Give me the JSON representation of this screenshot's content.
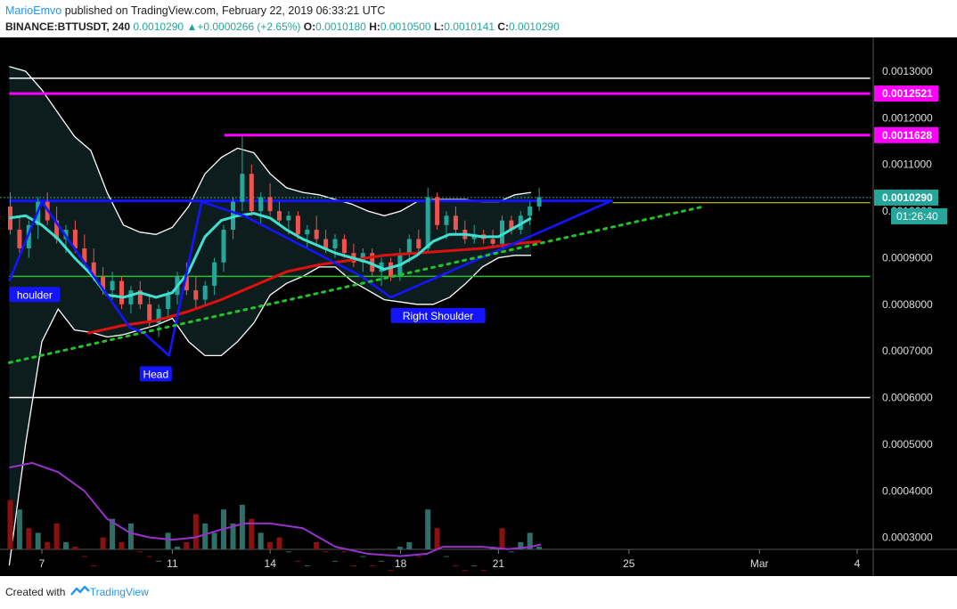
{
  "header": {
    "author": "MarioEmvo",
    "published": "published on TradingView.com, February 22, 2019 06:33:21 UTC",
    "symbol": "BINANCE:BTTUSDT, 240",
    "price": "0.0010290",
    "change": "+0.0000266 (+2.65%)",
    "o_label": "O:",
    "o": "0.0010180",
    "h_label": "H:",
    "h": "0.0010500",
    "l_label": "L:",
    "l": "0.0010141",
    "c_label": "C:",
    "c": "0.0010290"
  },
  "footer": {
    "created_with": "Created with",
    "brand": "TradingView"
  },
  "colors": {
    "background": "#000000",
    "up": "#26a69a",
    "down": "#ef5350",
    "vol_up": "#2f6f68",
    "vol_down": "#8b1010",
    "magenta": "#ff00ff",
    "blue": "#1414ff",
    "cyan": "#40e0d0",
    "red": "#e01010",
    "green": "#22c22a",
    "purple": "#9932cc",
    "white": "#ffffff",
    "yellow": "#e8e800"
  },
  "chart_data": {
    "type": "candlestick",
    "timeframe": "240",
    "y_ticks": [
      "0.0013000",
      "0.0012000",
      "0.0011000",
      "0.0010000",
      "0.0009000",
      "0.0008000",
      "0.0007000",
      "0.0006000",
      "0.0005000",
      "0.0004000",
      "0.0003000"
    ],
    "x_ticks": [
      {
        "label": "7",
        "day": 7
      },
      {
        "label": "11",
        "day": 11
      },
      {
        "label": "14",
        "day": 14
      },
      {
        "label": "18",
        "day": 18
      },
      {
        "label": "21",
        "day": 21
      },
      {
        "label": "25",
        "day": 25
      },
      {
        "label": "Mar",
        "day": 29
      },
      {
        "label": "4",
        "day": 32
      }
    ],
    "x_range": [
      6,
      32.4
    ],
    "price_badges": [
      {
        "label": "0.0012521",
        "value": 0.0012521,
        "color": "#ff00ff"
      },
      {
        "label": "0.0011628",
        "value": 0.0011628,
        "color": "#ff00ff"
      },
      {
        "label": "0.0010290",
        "value": 0.001029,
        "color": "#26a69a"
      }
    ],
    "countdown": "01:26:40",
    "annotations": [
      {
        "label": "houlder",
        "day": 6.0,
        "price": 0.00082
      },
      {
        "label": "Head",
        "day": 10.0,
        "price": 0.00065
      },
      {
        "label": "Right Shoulder",
        "day": 17.7,
        "price": 0.000775
      }
    ],
    "horizontal_lines": [
      {
        "price": 0.001285,
        "color": "white",
        "from": 6,
        "to": 32.4
      },
      {
        "price": 0.0012521,
        "color": "magenta",
        "from": 6,
        "to": 32.4,
        "width": 3
      },
      {
        "price": 0.0011628,
        "color": "magenta",
        "from": 12.6,
        "to": 32.4,
        "width": 3
      },
      {
        "price": 0.001022,
        "color": "blue",
        "from": 6,
        "to": 24.5,
        "width": 3
      },
      {
        "price": 0.001018,
        "color": "yellow",
        "from": 24.5,
        "to": 32.4,
        "width": 1
      },
      {
        "price": 0.00086,
        "color": "green",
        "from": 6,
        "to": 32.4,
        "width": 1.5
      },
      {
        "price": 0.0006,
        "color": "white",
        "from": 6,
        "to": 32.4,
        "width": 1.5
      }
    ],
    "pattern_lines": [
      {
        "color": "blue",
        "points": [
          [
            6,
            0.00085
          ],
          [
            7,
            0.00102
          ],
          [
            9.7,
            0.00075
          ],
          [
            10.1,
            0.00074
          ],
          [
            10.9,
            0.00069
          ],
          [
            11.9,
            0.00102
          ],
          [
            13.2,
            0.00099
          ],
          [
            16.8,
            0.00086
          ],
          [
            17.7,
            0.000815
          ],
          [
            24.4,
            0.00102
          ]
        ]
      },
      {
        "color": "green_dotted",
        "points": [
          [
            6,
            0.000675
          ],
          [
            27.3,
            0.00101
          ]
        ]
      }
    ],
    "ma_red": [
      [
        8.4,
        0.000738
      ],
      [
        9.5,
        0.000755
      ],
      [
        10.5,
        0.000765
      ],
      [
        11.5,
        0.000785
      ],
      [
        12.5,
        0.00081
      ],
      [
        13.5,
        0.00084
      ],
      [
        14.5,
        0.00087
      ],
      [
        15.5,
        0.000885
      ],
      [
        16.5,
        0.000895
      ],
      [
        17.5,
        0.000905
      ],
      [
        18.5,
        0.00091
      ],
      [
        19.5,
        0.000915
      ],
      [
        20.5,
        0.00092
      ],
      [
        21.5,
        0.00093
      ],
      [
        22.3,
        0.000935
      ]
    ],
    "ma_cyan": [
      [
        6,
        0.000985
      ],
      [
        6.5,
        0.00099
      ],
      [
        7,
        0.00097
      ],
      [
        7.5,
        0.00094
      ],
      [
        8,
        0.0009
      ],
      [
        8.5,
        0.000865
      ],
      [
        9,
        0.00082
      ],
      [
        9.5,
        0.000815
      ],
      [
        10,
        0.000825
      ],
      [
        10.5,
        0.000815
      ],
      [
        11,
        0.000825
      ],
      [
        11.5,
        0.00087
      ],
      [
        12,
        0.000945
      ],
      [
        12.5,
        0.00098
      ],
      [
        13,
        0.00099
      ],
      [
        13.5,
        0.000995
      ],
      [
        14,
        0.000985
      ],
      [
        14.5,
        0.00096
      ],
      [
        15,
        0.00094
      ],
      [
        15.5,
        0.000925
      ],
      [
        16,
        0.00091
      ],
      [
        16.5,
        0.0009
      ],
      [
        17,
        0.00089
      ],
      [
        17.5,
        0.000875
      ],
      [
        18,
        0.000885
      ],
      [
        18.5,
        0.000905
      ],
      [
        19,
        0.000935
      ],
      [
        19.5,
        0.00095
      ],
      [
        20,
        0.00095
      ],
      [
        20.5,
        0.000945
      ],
      [
        21,
        0.000945
      ],
      [
        21.5,
        0.000965
      ],
      [
        22,
        0.000985
      ]
    ],
    "bb_upper": [
      [
        6,
        0.00131
      ],
      [
        6.5,
        0.0013
      ],
      [
        7,
        0.00126
      ],
      [
        7.5,
        0.00121
      ],
      [
        8,
        0.00116
      ],
      [
        8.5,
        0.00113
      ],
      [
        9,
        0.00104
      ],
      [
        9.5,
        0.00097
      ],
      [
        10,
        0.000955
      ],
      [
        10.5,
        0.00095
      ],
      [
        11,
        0.000965
      ],
      [
        11.5,
        0.00101
      ],
      [
        12,
        0.00108
      ],
      [
        12.5,
        0.001115
      ],
      [
        13,
        0.001135
      ],
      [
        13.5,
        0.001125
      ],
      [
        14,
        0.00108
      ],
      [
        14.5,
        0.00105
      ],
      [
        15,
        0.00104
      ],
      [
        15.5,
        0.001035
      ],
      [
        16,
        0.001025
      ],
      [
        16.5,
        0.001015
      ],
      [
        17,
        0.001
      ],
      [
        17.5,
        0.00099
      ],
      [
        18,
        0.001
      ],
      [
        18.5,
        0.00102
      ],
      [
        19,
        0.001025
      ],
      [
        19.5,
        0.001025
      ],
      [
        20,
        0.001025
      ],
      [
        20.5,
        0.00102
      ],
      [
        21,
        0.00102
      ],
      [
        21.5,
        0.001035
      ],
      [
        22,
        0.00104
      ]
    ],
    "bb_lower": [
      [
        6,
        0.00024
      ],
      [
        6.5,
        0.0005
      ],
      [
        7,
        0.00072
      ],
      [
        7.5,
        0.00079
      ],
      [
        8,
        0.000745
      ],
      [
        8.5,
        0.00074
      ],
      [
        9,
        0.00073
      ],
      [
        9.5,
        0.000735
      ],
      [
        10,
        0.000745
      ],
      [
        10.5,
        0.000755
      ],
      [
        11,
        0.00077
      ],
      [
        11.5,
        0.00072
      ],
      [
        12,
        0.00069
      ],
      [
        12.5,
        0.00069
      ],
      [
        13,
        0.00072
      ],
      [
        13.5,
        0.00076
      ],
      [
        14,
        0.00082
      ],
      [
        14.5,
        0.000845
      ],
      [
        15,
        0.00086
      ],
      [
        15.5,
        0.00088
      ],
      [
        16,
        0.00088
      ],
      [
        16.5,
        0.00085
      ],
      [
        17,
        0.00083
      ],
      [
        17.5,
        0.00081
      ],
      [
        18,
        0.000805
      ],
      [
        18.5,
        0.0008
      ],
      [
        19,
        0.0008
      ],
      [
        19.5,
        0.000815
      ],
      [
        20,
        0.000845
      ],
      [
        20.5,
        0.00088
      ],
      [
        21,
        0.0009
      ],
      [
        21.5,
        0.000905
      ],
      [
        22,
        0.000905
      ]
    ],
    "candles": [
      {
        "o": 0.00101,
        "h": 0.00104,
        "l": 0.00095,
        "c": 0.00096
      },
      {
        "o": 0.00096,
        "h": 0.00099,
        "l": 0.00091,
        "c": 0.00092
      },
      {
        "o": 0.00092,
        "h": 0.00098,
        "l": 0.0009,
        "c": 0.00097
      },
      {
        "o": 0.00097,
        "h": 0.00103,
        "l": 0.00094,
        "c": 0.00102
      },
      {
        "o": 0.00102,
        "h": 0.00104,
        "l": 0.00097,
        "c": 0.00098
      },
      {
        "o": 0.00098,
        "h": 0.00101,
        "l": 0.00093,
        "c": 0.00094
      },
      {
        "o": 0.00094,
        "h": 0.00097,
        "l": 0.00091,
        "c": 0.00096
      },
      {
        "o": 0.00096,
        "h": 0.00098,
        "l": 0.00091,
        "c": 0.00092
      },
      {
        "o": 0.00092,
        "h": 0.00095,
        "l": 0.00088,
        "c": 0.00089
      },
      {
        "o": 0.00089,
        "h": 0.00092,
        "l": 0.00085,
        "c": 0.00086
      },
      {
        "o": 0.00086,
        "h": 0.00088,
        "l": 0.00082,
        "c": 0.00083
      },
      {
        "o": 0.00083,
        "h": 0.00087,
        "l": 0.00081,
        "c": 0.00085
      },
      {
        "o": 0.00085,
        "h": 0.00086,
        "l": 0.00079,
        "c": 0.0008
      },
      {
        "o": 0.0008,
        "h": 0.00084,
        "l": 0.00078,
        "c": 0.00083
      },
      {
        "o": 0.00083,
        "h": 0.00085,
        "l": 0.00079,
        "c": 0.0008
      },
      {
        "o": 0.0008,
        "h": 0.00082,
        "l": 0.00075,
        "c": 0.00076
      },
      {
        "o": 0.00076,
        "h": 0.0008,
        "l": 0.00073,
        "c": 0.00079
      },
      {
        "o": 0.00079,
        "h": 0.00083,
        "l": 0.00077,
        "c": 0.00082
      },
      {
        "o": 0.00082,
        "h": 0.00087,
        "l": 0.0008,
        "c": 0.00086
      },
      {
        "o": 0.00086,
        "h": 0.00089,
        "l": 0.00082,
        "c": 0.00083
      },
      {
        "o": 0.00083,
        "h": 0.00086,
        "l": 0.00079,
        "c": 0.00081
      },
      {
        "o": 0.00081,
        "h": 0.00085,
        "l": 0.0008,
        "c": 0.00084
      },
      {
        "o": 0.00084,
        "h": 0.0009,
        "l": 0.00082,
        "c": 0.00089
      },
      {
        "o": 0.00089,
        "h": 0.00097,
        "l": 0.00087,
        "c": 0.00096
      },
      {
        "o": 0.00096,
        "h": 0.00103,
        "l": 0.00094,
        "c": 0.00102
      },
      {
        "o": 0.00102,
        "h": 0.00116,
        "l": 0.001,
        "c": 0.00108
      },
      {
        "o": 0.00108,
        "h": 0.0011,
        "l": 0.00099,
        "c": 0.001
      },
      {
        "o": 0.001,
        "h": 0.00104,
        "l": 0.00097,
        "c": 0.00103
      },
      {
        "o": 0.00103,
        "h": 0.00106,
        "l": 0.00099,
        "c": 0.001
      },
      {
        "o": 0.001,
        "h": 0.00102,
        "l": 0.00097,
        "c": 0.00098
      },
      {
        "o": 0.00098,
        "h": 0.001,
        "l": 0.00095,
        "c": 0.00099
      },
      {
        "o": 0.00099,
        "h": 0.001,
        "l": 0.00094,
        "c": 0.00095
      },
      {
        "o": 0.00095,
        "h": 0.00097,
        "l": 0.00092,
        "c": 0.00096
      },
      {
        "o": 0.00096,
        "h": 0.00099,
        "l": 0.00093,
        "c": 0.00094
      },
      {
        "o": 0.00094,
        "h": 0.00096,
        "l": 0.00091,
        "c": 0.00092
      },
      {
        "o": 0.00092,
        "h": 0.00095,
        "l": 0.0009,
        "c": 0.00094
      },
      {
        "o": 0.00094,
        "h": 0.00095,
        "l": 0.0009,
        "c": 0.00091
      },
      {
        "o": 0.00091,
        "h": 0.00093,
        "l": 0.00088,
        "c": 0.00089
      },
      {
        "o": 0.00089,
        "h": 0.00092,
        "l": 0.00087,
        "c": 0.00091
      },
      {
        "o": 0.00091,
        "h": 0.00092,
        "l": 0.00086,
        "c": 0.00087
      },
      {
        "o": 0.00087,
        "h": 0.0009,
        "l": 0.00084,
        "c": 0.00089
      },
      {
        "o": 0.00089,
        "h": 0.0009,
        "l": 0.00085,
        "c": 0.00086
      },
      {
        "o": 0.00086,
        "h": 0.00092,
        "l": 0.00085,
        "c": 0.00091
      },
      {
        "o": 0.00091,
        "h": 0.00095,
        "l": 0.00089,
        "c": 0.00094
      },
      {
        "o": 0.00094,
        "h": 0.00096,
        "l": 0.00091,
        "c": 0.00092
      },
      {
        "o": 0.00092,
        "h": 0.00105,
        "l": 0.00091,
        "c": 0.00103
      },
      {
        "o": 0.00103,
        "h": 0.00104,
        "l": 0.00096,
        "c": 0.00097
      },
      {
        "o": 0.00097,
        "h": 0.001,
        "l": 0.00094,
        "c": 0.00099
      },
      {
        "o": 0.00099,
        "h": 0.00101,
        "l": 0.00095,
        "c": 0.00096
      },
      {
        "o": 0.00096,
        "h": 0.00098,
        "l": 0.00093,
        "c": 0.00094
      },
      {
        "o": 0.00094,
        "h": 0.00097,
        "l": 0.00093,
        "c": 0.00095
      },
      {
        "o": 0.00095,
        "h": 0.00096,
        "l": 0.00093,
        "c": 0.00094
      },
      {
        "o": 0.00094,
        "h": 0.00096,
        "l": 0.00092,
        "c": 0.00093
      },
      {
        "o": 0.00093,
        "h": 0.00099,
        "l": 0.00092,
        "c": 0.00098
      },
      {
        "o": 0.00098,
        "h": 0.00099,
        "l": 0.00095,
        "c": 0.00096
      },
      {
        "o": 0.00096,
        "h": 0.001,
        "l": 0.00095,
        "c": 0.00099
      },
      {
        "o": 0.00099,
        "h": 0.00102,
        "l": 0.00097,
        "c": 0.00101
      },
      {
        "o": 0.00101,
        "h": 0.00105,
        "l": 0.001,
        "c": 0.00103
      }
    ],
    "volume": [
      0.00038,
      0.00036,
      0.00032,
      0.00031,
      0.00029,
      0.00033,
      0.00029,
      0.00028,
      0.00026,
      0.00024,
      0.0003,
      0.00034,
      0.00029,
      0.00033,
      0.00027,
      0.00026,
      0.00025,
      0.00031,
      0.00028,
      0.00029,
      0.00035,
      0.00033,
      0.00031,
      0.00036,
      0.00033,
      0.00037,
      0.00034,
      0.00031,
      0.00029,
      0.0003,
      0.00027,
      0.00025,
      0.00024,
      0.00029,
      0.00027,
      0.00025,
      0.00027,
      0.00024,
      0.00026,
      0.00024,
      0.00025,
      0.00023,
      0.00028,
      0.00029,
      0.00026,
      0.00036,
      0.00032,
      0.00026,
      0.00024,
      0.00023,
      0.00024,
      0.00023,
      0.00028,
      0.00032,
      0.00027,
      0.00029,
      0.00031,
      0.00028
    ],
    "volume_up_flags": [
      0,
      1,
      0,
      1,
      0,
      0,
      1,
      0,
      0,
      0,
      0,
      1,
      0,
      1,
      0,
      0,
      1,
      1,
      1,
      0,
      0,
      1,
      1,
      1,
      1,
      1,
      0,
      1,
      0,
      0,
      1,
      0,
      1,
      0,
      0,
      1,
      0,
      0,
      1,
      0,
      1,
      0,
      1,
      1,
      0,
      1,
      0,
      1,
      0,
      0,
      1,
      0,
      1,
      0,
      1,
      1,
      1,
      1
    ],
    "volume_ma": [
      [
        6,
        0.00045
      ],
      [
        6.7,
        0.00046
      ],
      [
        7.5,
        0.00044
      ],
      [
        8.3,
        0.0004
      ],
      [
        9,
        0.00034
      ],
      [
        9.7,
        0.00031
      ],
      [
        10.3,
        0.0003
      ],
      [
        11,
        0.000295
      ],
      [
        11.7,
        0.0003
      ],
      [
        12.4,
        0.000315
      ],
      [
        13.2,
        0.00033
      ],
      [
        14,
        0.00033
      ],
      [
        15,
        0.00032
      ],
      [
        16,
        0.00028
      ],
      [
        17,
        0.000265
      ],
      [
        18,
        0.00026
      ],
      [
        18.8,
        0.000265
      ],
      [
        19.3,
        0.00028
      ],
      [
        20.5,
        0.00028
      ],
      [
        21.3,
        0.000275
      ],
      [
        22,
        0.00028
      ],
      [
        22.3,
        0.000285
      ]
    ]
  }
}
